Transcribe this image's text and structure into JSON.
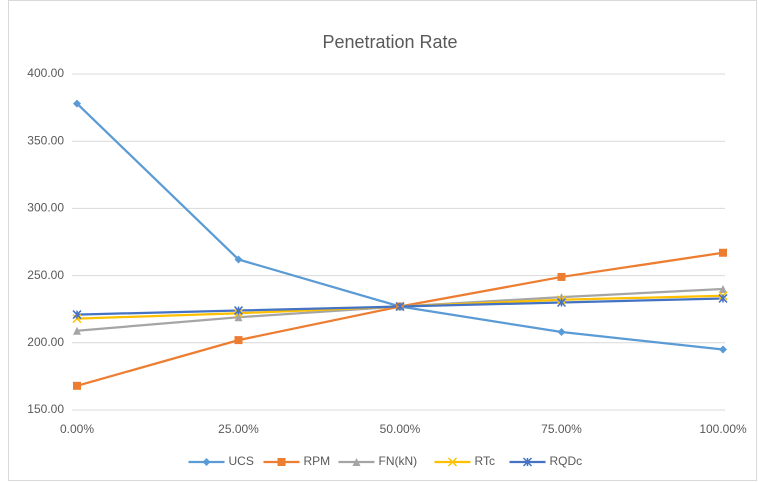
{
  "chart_data": {
    "type": "line",
    "title": "Penetration Rate",
    "categories": [
      "0.00%",
      "25.00%",
      "50.00%",
      "75.00%",
      "100.00%"
    ],
    "series": [
      {
        "name": "UCS",
        "color": "#5b9bd5",
        "marker": "diamond",
        "values": [
          378,
          262,
          227,
          208,
          195
        ]
      },
      {
        "name": "RPM",
        "color": "#ed7d31",
        "marker": "square",
        "values": [
          168,
          202,
          227,
          249,
          267
        ]
      },
      {
        "name": "FN(kN)",
        "color": "#a5a5a5",
        "marker": "triangle",
        "values": [
          209,
          219,
          227,
          234,
          240
        ]
      },
      {
        "name": "RTc",
        "color": "#ffc000",
        "marker": "x",
        "values": [
          218,
          222,
          227,
          232,
          235
        ]
      },
      {
        "name": "RQDc",
        "color": "#4472c4",
        "marker": "star",
        "values": [
          221,
          224,
          227,
          230,
          233
        ]
      }
    ],
    "ylim": [
      150,
      400
    ],
    "yticks": [
      {
        "value": 150,
        "label": "150.00"
      },
      {
        "value": 200,
        "label": "200.00"
      },
      {
        "value": 250,
        "label": "250.00"
      },
      {
        "value": 300,
        "label": "300.00"
      },
      {
        "value": 350,
        "label": "350.00"
      },
      {
        "value": 400,
        "label": "400.00"
      }
    ],
    "grid": true,
    "legend": "bottom"
  }
}
